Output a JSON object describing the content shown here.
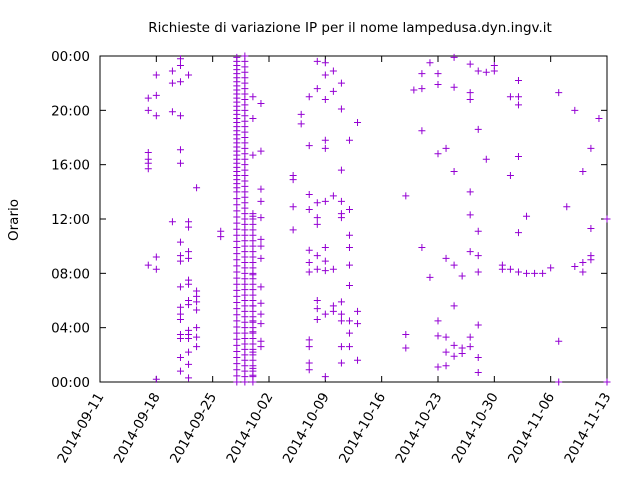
{
  "chart_data": {
    "type": "scatter",
    "title": "Richieste di variazione IP per il nome lampedusa.dyn.ingv.it",
    "xlabel": "",
    "ylabel": "Orario",
    "x_ticks": [
      "2014-09-11",
      "2014-09-18",
      "2014-09-25",
      "2014-10-02",
      "2014-10-09",
      "2014-10-16",
      "2014-10-23",
      "2014-10-30",
      "2014-11-06",
      "2014-11-13"
    ],
    "y_ticks": [
      "00:00",
      "04:00",
      "08:00",
      "12:00",
      "16:00",
      "20:00",
      "00:00"
    ],
    "xlim": [
      "2014-09-11",
      "2014-11-13"
    ],
    "ylim_hours": [
      0,
      24
    ],
    "marker": "+",
    "color": "#9400d3",
    "grid": false,
    "legend": "none",
    "series": [
      {
        "points": [
          [
            "2014-09-17",
            20.9
          ],
          [
            "2014-09-17",
            20.0
          ],
          [
            "2014-09-17",
            16.9
          ],
          [
            "2014-09-17",
            16.4
          ],
          [
            "2014-09-17",
            16.1
          ],
          [
            "2014-09-17",
            15.7
          ],
          [
            "2014-09-17",
            8.6
          ],
          [
            "2014-09-18",
            22.6
          ],
          [
            "2014-09-18",
            21.1
          ],
          [
            "2014-09-18",
            19.6
          ],
          [
            "2014-09-18",
            9.2
          ],
          [
            "2014-09-18",
            8.3
          ],
          [
            "2014-09-18",
            0.2
          ],
          [
            "2014-09-20",
            22.0
          ],
          [
            "2014-09-20",
            19.9
          ],
          [
            "2014-09-20",
            11.8
          ],
          [
            "2014-09-20",
            22.9
          ],
          [
            "2014-09-21",
            23.8
          ],
          [
            "2014-09-21",
            23.3
          ],
          [
            "2014-09-21",
            22.1
          ],
          [
            "2014-09-21",
            19.6
          ],
          [
            "2014-09-21",
            17.1
          ],
          [
            "2014-09-21",
            16.1
          ],
          [
            "2014-09-21",
            10.3
          ],
          [
            "2014-09-21",
            9.3
          ],
          [
            "2014-09-21",
            8.9
          ],
          [
            "2014-09-21",
            7.0
          ],
          [
            "2014-09-21",
            5.5
          ],
          [
            "2014-09-21",
            5.0
          ],
          [
            "2014-09-21",
            4.6
          ],
          [
            "2014-09-21",
            3.5
          ],
          [
            "2014-09-21",
            3.2
          ],
          [
            "2014-09-21",
            1.8
          ],
          [
            "2014-09-21",
            0.8
          ],
          [
            "2014-09-22",
            22.6
          ],
          [
            "2014-09-22",
            11.8
          ],
          [
            "2014-09-22",
            11.4
          ],
          [
            "2014-09-22",
            9.6
          ],
          [
            "2014-09-22",
            9.1
          ],
          [
            "2014-09-22",
            7.5
          ],
          [
            "2014-09-22",
            7.2
          ],
          [
            "2014-09-22",
            6.0
          ],
          [
            "2014-09-22",
            5.7
          ],
          [
            "2014-09-22",
            3.8
          ],
          [
            "2014-09-22",
            3.5
          ],
          [
            "2014-09-22",
            3.2
          ],
          [
            "2014-09-22",
            2.2
          ],
          [
            "2014-09-22",
            1.3
          ],
          [
            "2014-09-22",
            0.3
          ],
          [
            "2014-09-23",
            14.3
          ],
          [
            "2014-09-23",
            6.7
          ],
          [
            "2014-09-23",
            6.3
          ],
          [
            "2014-09-23",
            5.9
          ],
          [
            "2014-09-23",
            5.3
          ],
          [
            "2014-09-23",
            4.0
          ],
          [
            "2014-09-23",
            3.3
          ],
          [
            "2014-09-23",
            2.6
          ],
          [
            "2014-09-26",
            11.1
          ],
          [
            "2014-09-26",
            10.7
          ],
          [
            "2014-09-30",
            21.0
          ],
          [
            "2014-09-30",
            19.4
          ],
          [
            "2014-09-30",
            16.7
          ],
          [
            "2014-09-30",
            12.2
          ],
          [
            "2014-09-30",
            7.9
          ],
          [
            "2014-09-30",
            5.6
          ],
          [
            "2014-09-30",
            4.5
          ],
          [
            "2014-09-30",
            3.7
          ],
          [
            "2014-09-30",
            2.2
          ],
          [
            "2014-09-30",
            1.0
          ],
          [
            "2014-09-30",
            0.5
          ],
          [
            "2014-10-01",
            20.5
          ],
          [
            "2014-10-01",
            17.0
          ],
          [
            "2014-10-01",
            14.2
          ],
          [
            "2014-10-01",
            13.3
          ],
          [
            "2014-10-01",
            12.1
          ],
          [
            "2014-10-01",
            10.5
          ],
          [
            "2014-10-01",
            10.0
          ],
          [
            "2014-10-01",
            9.1
          ],
          [
            "2014-10-01",
            7.0
          ],
          [
            "2014-10-01",
            5.8
          ],
          [
            "2014-10-01",
            5.0
          ],
          [
            "2014-10-01",
            4.3
          ],
          [
            "2014-10-01",
            3.0
          ],
          [
            "2014-10-01",
            2.6
          ],
          [
            "2014-10-05",
            15.2
          ],
          [
            "2014-10-05",
            14.9
          ],
          [
            "2014-10-05",
            12.9
          ],
          [
            "2014-10-05",
            11.2
          ],
          [
            "2014-10-06",
            19.7
          ],
          [
            "2014-10-06",
            19.0
          ],
          [
            "2014-10-07",
            21.0
          ],
          [
            "2014-10-07",
            17.4
          ],
          [
            "2014-10-07",
            13.8
          ],
          [
            "2014-10-07",
            12.7
          ],
          [
            "2014-10-07",
            9.7
          ],
          [
            "2014-10-07",
            8.8
          ],
          [
            "2014-10-07",
            8.1
          ],
          [
            "2014-10-07",
            3.1
          ],
          [
            "2014-10-07",
            2.6
          ],
          [
            "2014-10-07",
            1.4
          ],
          [
            "2014-10-07",
            0.9
          ],
          [
            "2014-10-08",
            23.6
          ],
          [
            "2014-10-08",
            21.6
          ],
          [
            "2014-10-08",
            13.2
          ],
          [
            "2014-10-08",
            12.1
          ],
          [
            "2014-10-08",
            11.6
          ],
          [
            "2014-10-08",
            9.3
          ],
          [
            "2014-10-08",
            8.3
          ],
          [
            "2014-10-08",
            6.0
          ],
          [
            "2014-10-08",
            5.4
          ],
          [
            "2014-10-08",
            4.6
          ],
          [
            "2014-10-09",
            23.5
          ],
          [
            "2014-10-09",
            22.6
          ],
          [
            "2014-10-09",
            20.8
          ],
          [
            "2014-10-09",
            17.8
          ],
          [
            "2014-10-09",
            17.2
          ],
          [
            "2014-10-09",
            13.3
          ],
          [
            "2014-10-09",
            9.9
          ],
          [
            "2014-10-09",
            8.9
          ],
          [
            "2014-10-09",
            8.2
          ],
          [
            "2014-10-09",
            5.0
          ],
          [
            "2014-10-09",
            0.4
          ],
          [
            "2014-10-10",
            22.9
          ],
          [
            "2014-10-10",
            21.4
          ],
          [
            "2014-10-10",
            13.7
          ],
          [
            "2014-10-10",
            8.3
          ],
          [
            "2014-10-10",
            5.6
          ],
          [
            "2014-10-10",
            5.2
          ],
          [
            "2014-10-11",
            22.0
          ],
          [
            "2014-10-11",
            20.1
          ],
          [
            "2014-10-11",
            15.6
          ],
          [
            "2014-10-11",
            13.3
          ],
          [
            "2014-10-11",
            12.4
          ],
          [
            "2014-10-11",
            12.1
          ],
          [
            "2014-10-11",
            5.9
          ],
          [
            "2014-10-11",
            5.0
          ],
          [
            "2014-10-11",
            4.5
          ],
          [
            "2014-10-11",
            2.6
          ],
          [
            "2014-10-11",
            1.4
          ],
          [
            "2014-10-12",
            17.8
          ],
          [
            "2014-10-12",
            12.7
          ],
          [
            "2014-10-12",
            10.8
          ],
          [
            "2014-10-12",
            9.9
          ],
          [
            "2014-10-12",
            8.6
          ],
          [
            "2014-10-12",
            7.1
          ],
          [
            "2014-10-12",
            4.5
          ],
          [
            "2014-10-12",
            3.6
          ],
          [
            "2014-10-12",
            2.6
          ],
          [
            "2014-10-13",
            19.1
          ],
          [
            "2014-10-13",
            5.2
          ],
          [
            "2014-10-13",
            4.3
          ],
          [
            "2014-10-13",
            1.6
          ],
          [
            "2014-10-19",
            13.7
          ],
          [
            "2014-10-19",
            3.5
          ],
          [
            "2014-10-19",
            2.5
          ],
          [
            "2014-10-20",
            21.5
          ],
          [
            "2014-10-21",
            22.7
          ],
          [
            "2014-10-21",
            21.6
          ],
          [
            "2014-10-21",
            18.5
          ],
          [
            "2014-10-21",
            9.9
          ],
          [
            "2014-10-22",
            23.5
          ],
          [
            "2014-10-22",
            7.7
          ],
          [
            "2014-10-23",
            22.7
          ],
          [
            "2014-10-23",
            21.9
          ],
          [
            "2014-10-23",
            16.8
          ],
          [
            "2014-10-23",
            4.5
          ],
          [
            "2014-10-23",
            3.4
          ],
          [
            "2014-10-23",
            1.1
          ],
          [
            "2014-10-24",
            17.2
          ],
          [
            "2014-10-24",
            9.1
          ],
          [
            "2014-10-24",
            3.3
          ],
          [
            "2014-10-24",
            2.2
          ],
          [
            "2014-10-24",
            1.2
          ],
          [
            "2014-10-25",
            23.9
          ],
          [
            "2014-10-25",
            21.7
          ],
          [
            "2014-10-25",
            15.5
          ],
          [
            "2014-10-25",
            8.6
          ],
          [
            "2014-10-25",
            5.6
          ],
          [
            "2014-10-25",
            2.7
          ],
          [
            "2014-10-25",
            1.9
          ],
          [
            "2014-10-26",
            7.8
          ],
          [
            "2014-10-26",
            2.5
          ],
          [
            "2014-10-26",
            2.1
          ],
          [
            "2014-10-27",
            23.4
          ],
          [
            "2014-10-27",
            21.3
          ],
          [
            "2014-10-27",
            20.8
          ],
          [
            "2014-10-27",
            14.0
          ],
          [
            "2014-10-27",
            12.3
          ],
          [
            "2014-10-27",
            9.6
          ],
          [
            "2014-10-27",
            3.3
          ],
          [
            "2014-10-27",
            2.6
          ],
          [
            "2014-10-28",
            22.9
          ],
          [
            "2014-10-28",
            18.6
          ],
          [
            "2014-10-28",
            11.1
          ],
          [
            "2014-10-28",
            9.3
          ],
          [
            "2014-10-28",
            8.1
          ],
          [
            "2014-10-28",
            4.2
          ],
          [
            "2014-10-28",
            1.8
          ],
          [
            "2014-10-28",
            0.7
          ],
          [
            "2014-10-29",
            22.8
          ],
          [
            "2014-10-29",
            16.4
          ],
          [
            "2014-10-30",
            23.3
          ],
          [
            "2014-10-30",
            22.9
          ],
          [
            "2014-10-31",
            8.6
          ],
          [
            "2014-10-31",
            8.3
          ],
          [
            "2014-11-01",
            21.0
          ],
          [
            "2014-11-01",
            15.2
          ],
          [
            "2014-11-01",
            8.3
          ],
          [
            "2014-11-02",
            22.2
          ],
          [
            "2014-11-02",
            21.0
          ],
          [
            "2014-11-02",
            20.4
          ],
          [
            "2014-11-02",
            16.6
          ],
          [
            "2014-11-02",
            11.0
          ],
          [
            "2014-11-02",
            8.1
          ],
          [
            "2014-11-03",
            12.2
          ],
          [
            "2014-11-03",
            8.0
          ],
          [
            "2014-11-04",
            8.0
          ],
          [
            "2014-11-05",
            8.0
          ],
          [
            "2014-11-06",
            8.4
          ],
          [
            "2014-11-07",
            21.3
          ],
          [
            "2014-11-07",
            3.0
          ],
          [
            "2014-11-07",
            0.0
          ],
          [
            "2014-11-08",
            12.9
          ],
          [
            "2014-11-09",
            20.0
          ],
          [
            "2014-11-09",
            8.5
          ],
          [
            "2014-11-10",
            15.5
          ],
          [
            "2014-11-10",
            8.8
          ],
          [
            "2014-11-10",
            8.1
          ],
          [
            "2014-11-11",
            17.2
          ],
          [
            "2014-11-11",
            11.3
          ],
          [
            "2014-11-11",
            9.3
          ],
          [
            "2014-11-11",
            9.0
          ],
          [
            "2014-11-12",
            19.4
          ],
          [
            "2014-11-13",
            12.0
          ],
          [
            "2014-11-13",
            0.0
          ]
        ],
        "dense_columns": [
          {
            "date": "2014-09-28",
            "from": 14.0,
            "to": 24.0,
            "step": 0.3
          },
          {
            "date": "2014-09-28",
            "from": 0.0,
            "to": 13.5,
            "step": 0.45
          },
          {
            "date": "2014-09-29",
            "from": 0.0,
            "to": 24.0,
            "step": 0.4
          },
          {
            "date": "2014-09-30",
            "from": 0.0,
            "to": 12.5,
            "step": 0.4
          }
        ]
      }
    ]
  }
}
